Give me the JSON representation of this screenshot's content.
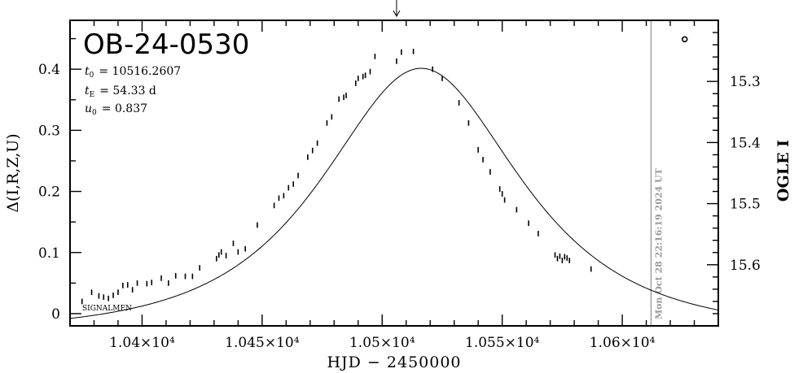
{
  "chart_data": {
    "type": "scatter",
    "title": "OB-24-0530",
    "params": [
      {
        "sym": "t",
        "sub": "0",
        "text": "= 10516.2607"
      },
      {
        "sym": "t",
        "sub": "E",
        "text": "= 54.33 d"
      },
      {
        "sym": "u",
        "sub": "0",
        "text": "= 0.837"
      }
    ],
    "xlabel": "HJD − 2450000",
    "ylabel": "Δ(I,R,Z,U)",
    "ylabel_right": "OGLE I",
    "xlim": [
      10370,
      10640
    ],
    "ylim": [
      -0.02,
      0.48
    ],
    "right_ylim_mag": [
      15.7,
      15.2
    ],
    "x_ticks": [
      {
        "value": 10400,
        "label": "1.04×10⁴"
      },
      {
        "value": 10450,
        "label": "1.045×10⁴"
      },
      {
        "value": 10500,
        "label": "1.05×10⁴"
      },
      {
        "value": 10550,
        "label": "1.055×10⁴"
      },
      {
        "value": 10600,
        "label": "1.06×10⁴"
      }
    ],
    "y_ticks": [
      {
        "value": 0,
        "label": "0"
      },
      {
        "value": 0.1,
        "label": "0.1"
      },
      {
        "value": 0.2,
        "label": "0.2"
      },
      {
        "value": 0.3,
        "label": "0.3"
      },
      {
        "value": 0.4,
        "label": "0.4"
      }
    ],
    "right_ticks": [
      {
        "value": 15.3,
        "label": "15.3"
      },
      {
        "value": 15.4,
        "label": "15.4"
      },
      {
        "value": 15.5,
        "label": "15.5"
      },
      {
        "value": 15.6,
        "label": "15.6"
      }
    ],
    "now_line": {
      "x": 10612,
      "label": "Mon Oct 28 22:16:19 2024 UT"
    },
    "arrow_x": 10506,
    "signature": "SIGNALMEN",
    "model": {
      "t0": 10516.2607,
      "tE": 54.33,
      "u0": 0.837,
      "baseline_offset": -0.03
    },
    "series": [
      {
        "marker": "errorbar",
        "points": [
          {
            "x": 10375,
            "y": 0.02
          },
          {
            "x": 10379,
            "y": 0.035
          },
          {
            "x": 10382,
            "y": 0.029
          },
          {
            "x": 10384,
            "y": 0.027
          },
          {
            "x": 10386,
            "y": 0.025
          },
          {
            "x": 10388,
            "y": 0.03
          },
          {
            "x": 10390,
            "y": 0.035
          },
          {
            "x": 10392,
            "y": 0.046
          },
          {
            "x": 10394,
            "y": 0.047
          },
          {
            "x": 10396,
            "y": 0.039
          },
          {
            "x": 10398,
            "y": 0.05
          },
          {
            "x": 10402,
            "y": 0.049
          },
          {
            "x": 10404,
            "y": 0.051
          },
          {
            "x": 10408,
            "y": 0.058
          },
          {
            "x": 10411,
            "y": 0.05
          },
          {
            "x": 10414,
            "y": 0.062
          },
          {
            "x": 10418,
            "y": 0.061
          },
          {
            "x": 10421,
            "y": 0.061
          },
          {
            "x": 10424,
            "y": 0.075
          },
          {
            "x": 10431,
            "y": 0.09
          },
          {
            "x": 10432,
            "y": 0.096
          },
          {
            "x": 10433,
            "y": 0.101
          },
          {
            "x": 10435,
            "y": 0.095
          },
          {
            "x": 10438,
            "y": 0.115
          },
          {
            "x": 10440,
            "y": 0.101
          },
          {
            "x": 10443,
            "y": 0.106
          },
          {
            "x": 10448,
            "y": 0.145
          },
          {
            "x": 10455,
            "y": 0.177
          },
          {
            "x": 10457,
            "y": 0.189
          },
          {
            "x": 10459,
            "y": 0.193
          },
          {
            "x": 10461,
            "y": 0.206
          },
          {
            "x": 10463,
            "y": 0.212
          },
          {
            "x": 10465,
            "y": 0.226
          },
          {
            "x": 10469,
            "y": 0.256
          },
          {
            "x": 10471,
            "y": 0.267
          },
          {
            "x": 10473,
            "y": 0.279
          },
          {
            "x": 10477,
            "y": 0.312
          },
          {
            "x": 10479,
            "y": 0.322
          },
          {
            "x": 10482,
            "y": 0.351
          },
          {
            "x": 10484,
            "y": 0.354
          },
          {
            "x": 10485,
            "y": 0.357
          },
          {
            "x": 10489,
            "y": 0.377
          },
          {
            "x": 10490,
            "y": 0.385
          },
          {
            "x": 10492,
            "y": 0.388
          },
          {
            "x": 10493,
            "y": 0.39
          },
          {
            "x": 10495,
            "y": 0.396
          },
          {
            "x": 10497,
            "y": 0.421
          },
          {
            "x": 10506,
            "y": 0.413
          },
          {
            "x": 10508,
            "y": 0.428
          },
          {
            "x": 10513,
            "y": 0.429
          },
          {
            "x": 10521,
            "y": 0.4
          },
          {
            "x": 10525,
            "y": 0.385
          },
          {
            "x": 10532,
            "y": 0.345
          },
          {
            "x": 10536,
            "y": 0.312
          },
          {
            "x": 10540,
            "y": 0.268
          },
          {
            "x": 10542,
            "y": 0.252
          },
          {
            "x": 10545,
            "y": 0.232
          },
          {
            "x": 10549,
            "y": 0.204
          },
          {
            "x": 10550,
            "y": 0.196
          },
          {
            "x": 10551,
            "y": 0.186
          },
          {
            "x": 10556,
            "y": 0.17
          },
          {
            "x": 10561,
            "y": 0.148
          },
          {
            "x": 10565,
            "y": 0.131
          },
          {
            "x": 10572,
            "y": 0.096
          },
          {
            "x": 10573,
            "y": 0.09
          },
          {
            "x": 10574,
            "y": 0.094
          },
          {
            "x": 10575,
            "y": 0.087
          },
          {
            "x": 10576,
            "y": 0.093
          },
          {
            "x": 10577,
            "y": 0.091
          },
          {
            "x": 10578,
            "y": 0.087
          },
          {
            "x": 10587,
            "y": 0.073
          }
        ]
      },
      {
        "marker": "open-circle",
        "points": [
          {
            "x": 10626,
            "y": 0.449
          }
        ]
      }
    ]
  }
}
